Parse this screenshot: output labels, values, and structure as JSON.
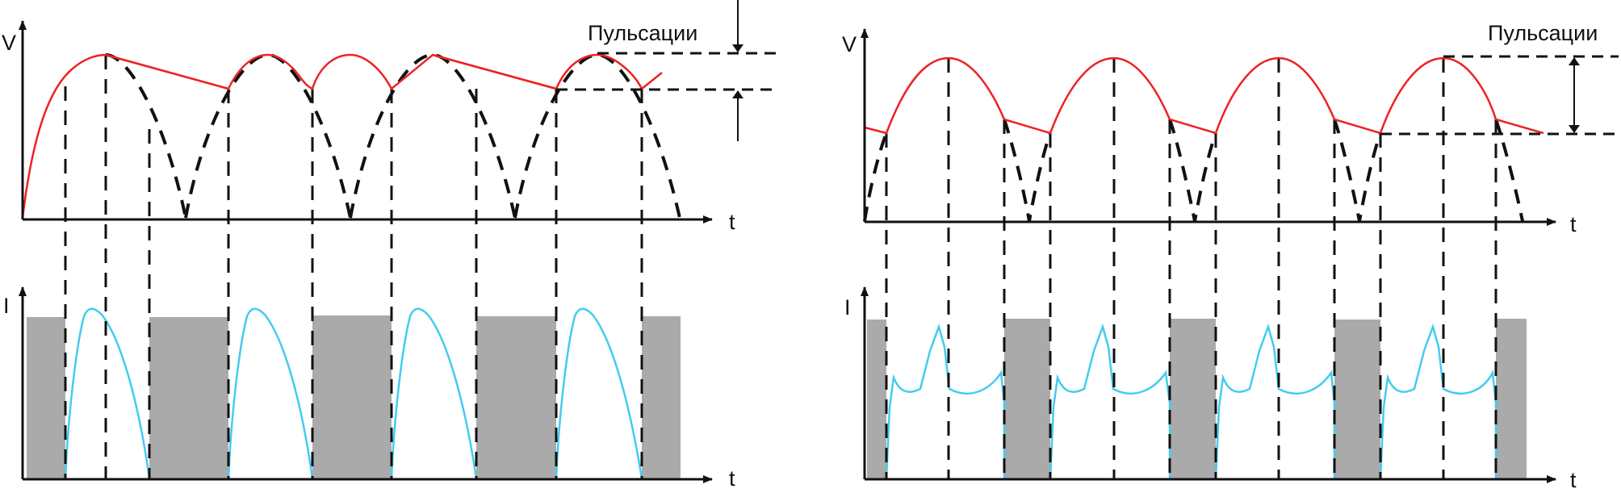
{
  "left_panel": {
    "voltage_axis_label": "V",
    "current_axis_label": "I",
    "time_axis_label_top": "t",
    "time_axis_label_bottom": "t",
    "ripple_label": "Пульсации"
  },
  "right_panel": {
    "voltage_axis_label": "V",
    "current_axis_label": "I",
    "time_axis_label_top": "t",
    "time_axis_label_bottom": "t",
    "ripple_label": "Пульсации"
  },
  "colors": {
    "filtered_voltage": "#ee2222",
    "rectified_voltage": "#111111",
    "diode_current": "#44ccee",
    "capacitor_discharge": "#aaaaaa"
  }
}
